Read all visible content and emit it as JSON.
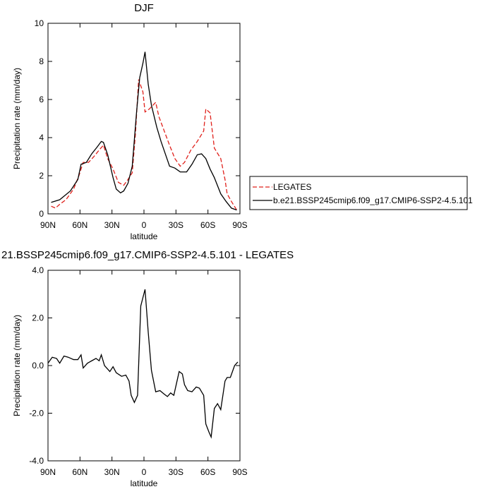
{
  "chart_data": [
    {
      "type": "line",
      "title": "DJF",
      "x_label": "latitude",
      "y_label": "Precipitation rate (mm/day)",
      "xlim": [
        90,
        -90
      ],
      "xticks": [
        {
          "value": 90,
          "label": "90N"
        },
        {
          "value": 60,
          "label": "60N"
        },
        {
          "value": 30,
          "label": "30N"
        },
        0,
        {
          "value": -30,
          "label": "30S"
        },
        {
          "value": -60,
          "label": "60S"
        },
        {
          "value": -90,
          "label": "90S"
        }
      ],
      "ylim": [
        0,
        10
      ],
      "yticks": [
        0,
        2,
        4,
        6,
        8,
        10
      ],
      "legend": "right",
      "series": [
        {
          "name": "LEGATES",
          "color": "#e0201b",
          "dash": true,
          "x": [
            87,
            83,
            79,
            73,
            66,
            61,
            57,
            52,
            47,
            42,
            38,
            34,
            29,
            24,
            19,
            15,
            11,
            8,
            5,
            1,
            -1,
            -5,
            -11,
            -14,
            -19,
            -24,
            -29,
            -34,
            -38,
            -44,
            -50,
            -56,
            -58,
            -62,
            -66,
            -72,
            -76,
            -78,
            -82,
            -87
          ],
          "values": [
            0.4,
            0.3,
            0.5,
            0.75,
            1.3,
            2.0,
            2.7,
            2.7,
            3.0,
            3.35,
            3.6,
            2.9,
            2.35,
            1.65,
            1.5,
            1.8,
            2.15,
            4.2,
            7.05,
            6.4,
            5.35,
            5.5,
            5.85,
            5.1,
            4.35,
            3.6,
            2.9,
            2.5,
            2.7,
            3.35,
            3.8,
            4.35,
            5.5,
            5.3,
            3.45,
            2.9,
            1.8,
            1.05,
            0.65,
            0.2
          ]
        },
        {
          "name": "b.e21.BSSP245cmip6.f09_g17.CMIP6-SSP2-4.5.101",
          "color": "#000000",
          "dash": false,
          "x": [
            87,
            79,
            69,
            62,
            59,
            54,
            49,
            44,
            40,
            38,
            34,
            29,
            26,
            22,
            19,
            15,
            11,
            7,
            4,
            1,
            -1,
            -4,
            -7,
            -12,
            -16,
            -20,
            -24,
            -29,
            -34,
            -40,
            -45,
            -50,
            -54,
            -58,
            -62,
            -66,
            -72,
            -77,
            -82,
            -87
          ],
          "values": [
            0.6,
            0.74,
            1.2,
            1.8,
            2.6,
            2.7,
            3.15,
            3.5,
            3.8,
            3.75,
            3.1,
            1.9,
            1.3,
            1.1,
            1.2,
            1.6,
            2.5,
            5.3,
            7.15,
            7.9,
            8.5,
            6.8,
            5.7,
            4.55,
            3.8,
            3.15,
            2.5,
            2.4,
            2.2,
            2.2,
            2.6,
            3.1,
            3.15,
            2.9,
            2.35,
            1.9,
            1.05,
            0.65,
            0.3,
            0.2
          ]
        }
      ]
    },
    {
      "type": "line",
      "title": "21.BSSP245cmip6.f09_g17.CMIP6-SSP2-4.5.101 - LEGATES",
      "x_label": "latitude",
      "y_label": "Precipitation rate (mm/day)",
      "xlim": [
        90,
        -90
      ],
      "xticks": [
        {
          "value": 90,
          "label": "90N"
        },
        {
          "value": 60,
          "label": "60N"
        },
        {
          "value": 30,
          "label": "30N"
        },
        0,
        {
          "value": -30,
          "label": "30S"
        },
        {
          "value": -60,
          "label": "60S"
        },
        {
          "value": -90,
          "label": "90S"
        }
      ],
      "ylim": [
        -4,
        4
      ],
      "yticks": [
        {
          "value": -4,
          "label": "-4.0"
        },
        {
          "value": -2,
          "label": "-2.0"
        },
        {
          "value": 0,
          "label": "0.0"
        },
        {
          "value": 2,
          "label": "2.0"
        },
        {
          "value": 4,
          "label": "4.0"
        }
      ],
      "series": [
        {
          "color": "#000000",
          "dash": false,
          "x": [
            90,
            86,
            82,
            79,
            75,
            71,
            66,
            62,
            59,
            57,
            53,
            49,
            45,
            42,
            40,
            37,
            32,
            29,
            26,
            21,
            17,
            14,
            12,
            9,
            6,
            3,
            -1,
            -4,
            -7,
            -11,
            -15,
            -19,
            -22,
            -25,
            -28,
            -31,
            -33,
            -36,
            -38,
            -41,
            -45,
            -49,
            -52,
            -56,
            -58,
            -61,
            -63,
            -66,
            -69,
            -72,
            -76,
            -78,
            -81,
            -85,
            -88
          ],
          "values": [
            0.1,
            0.35,
            0.3,
            0.1,
            0.4,
            0.35,
            0.25,
            0.25,
            0.45,
            -0.1,
            0.1,
            0.2,
            0.3,
            0.2,
            0.45,
            0,
            -0.25,
            -0.05,
            -0.3,
            -0.45,
            -0.4,
            -0.65,
            -1.25,
            -1.55,
            -1.25,
            2.5,
            3.2,
            1.4,
            -0.2,
            -1.1,
            -1.05,
            -1.2,
            -1.3,
            -1.15,
            -1.25,
            -0.65,
            -0.25,
            -0.35,
            -0.8,
            -1.05,
            -1.1,
            -0.9,
            -0.95,
            -1.25,
            -2.45,
            -2.8,
            -3.0,
            -1.8,
            -1.6,
            -1.85,
            -0.65,
            -0.5,
            -0.5,
            0,
            0.15
          ]
        }
      ]
    }
  ]
}
